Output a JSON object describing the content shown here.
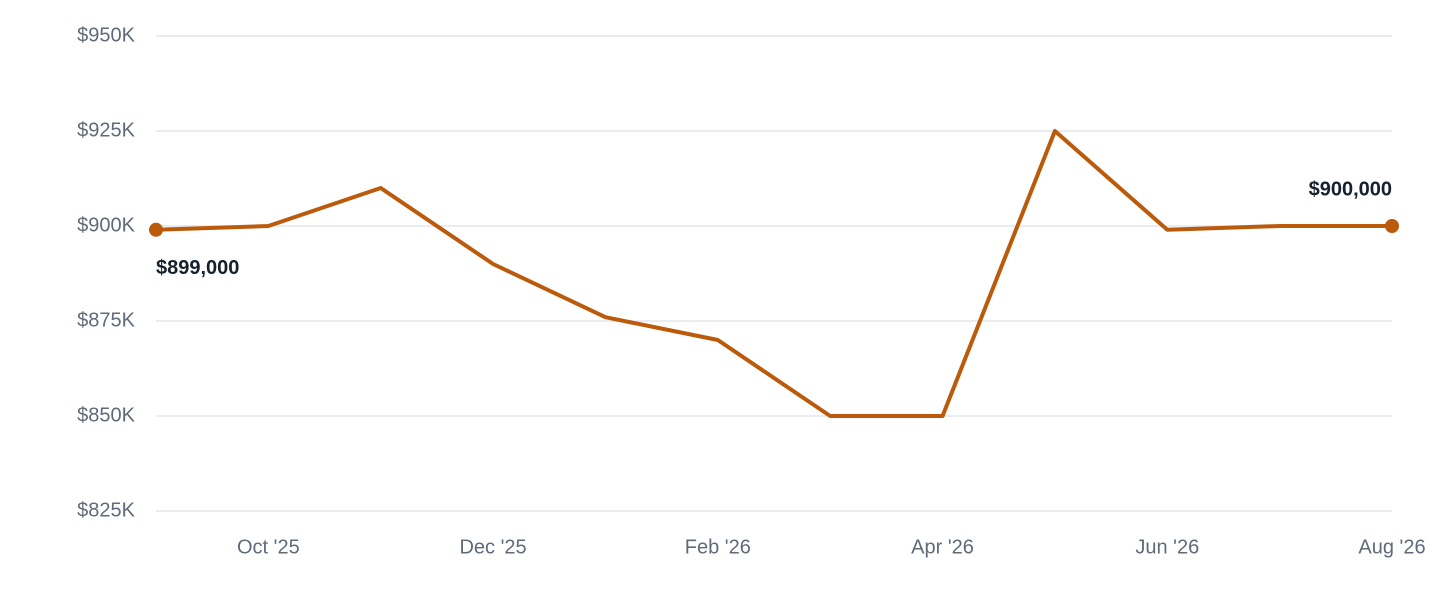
{
  "chart_data": {
    "type": "line",
    "categories": [
      null,
      "Oct '25",
      null,
      "Dec '25",
      null,
      "Feb '26",
      null,
      "Apr '26",
      null,
      "Jun '26",
      null,
      "Aug '26"
    ],
    "series": [
      {
        "color": "#bb5a0b",
        "values": [
          899000,
          900000,
          910000,
          890000,
          876000,
          870000,
          850000,
          850000,
          925000,
          899000,
          900000,
          900000
        ],
        "value_labels": [
          "$899,000",
          null,
          null,
          null,
          null,
          null,
          null,
          null,
          null,
          null,
          null,
          "$900,000"
        ]
      }
    ],
    "ylim": [
      825000,
      950000
    ],
    "yticks": [
      {
        "value": 825000,
        "label": "$825K"
      },
      {
        "value": 850000,
        "label": "$850K"
      },
      {
        "value": 875000,
        "label": "$875K"
      },
      {
        "value": 900000,
        "label": "$900K"
      },
      {
        "value": 925000,
        "label": "$925K"
      },
      {
        "value": 950000,
        "label": "$950K"
      }
    ],
    "grid": true
  }
}
